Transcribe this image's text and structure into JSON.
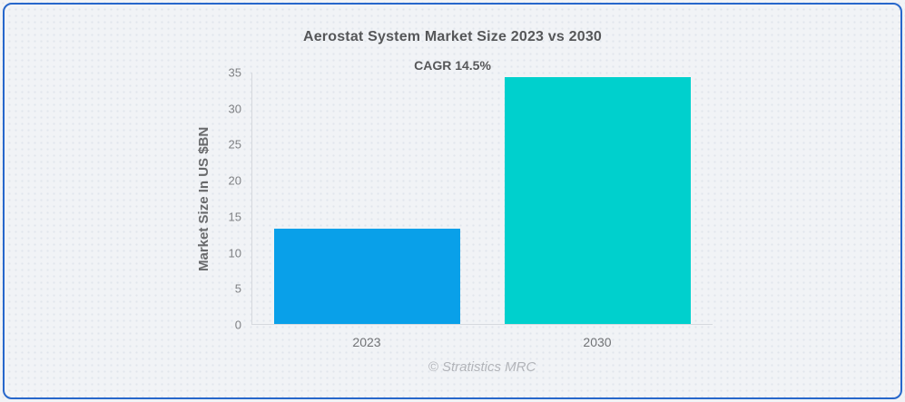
{
  "chart_data": {
    "type": "bar",
    "title": "Aerostat System Market Size 2023 vs 2030",
    "annotation": "CAGR 14.5%",
    "ylabel": "Market Size In US $BN",
    "xlabel": "",
    "categories": [
      "2023",
      "2030"
    ],
    "values": [
      13.3,
      34.4
    ],
    "ylim": [
      0,
      35
    ],
    "yticks": [
      0,
      5,
      10,
      15,
      20,
      25,
      30,
      35
    ],
    "bar_colors": [
      "#09a0e9",
      "#00d0cd"
    ],
    "grid": false,
    "legend_position": "none"
  },
  "footer": {
    "credit": "© Stratistics MRC"
  },
  "colors": {
    "card_border": "#2767cb",
    "background": "#f1f3f6",
    "axis_line": "#d6d9de"
  }
}
